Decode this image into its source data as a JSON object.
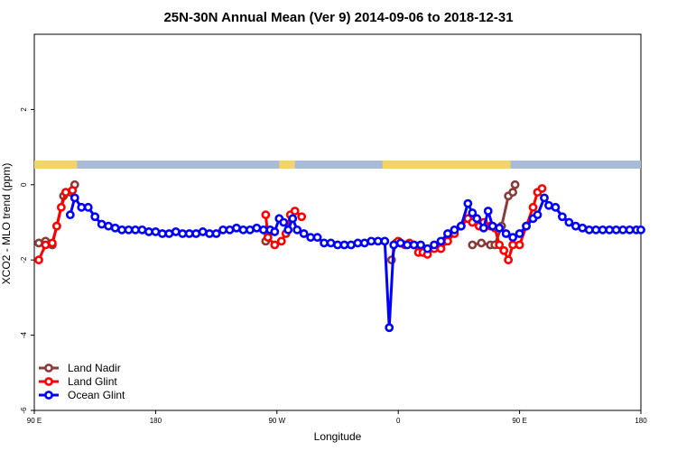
{
  "chart_data": {
    "type": "line",
    "title": "25N-30N Annual Mean (Ver 9)   2014-09-06 to 2018-12-31",
    "xlabel": "Longitude",
    "ylabel": "XCO2 - MLO trend (ppm)",
    "xlim": [
      -90,
      180
    ],
    "ylim": [
      -6,
      4
    ],
    "x_ticks": [
      {
        "value": -90,
        "label": "90 E"
      },
      {
        "value": -36,
        "label": "180"
      },
      {
        "value": 18,
        "label": "90 W"
      },
      {
        "value": 72,
        "label": "0"
      },
      {
        "value": 126,
        "label": "90 E"
      },
      {
        "value": 180,
        "label": "180"
      }
    ],
    "y_ticks": [
      -6,
      -4,
      -2,
      0,
      2
    ],
    "grid": false,
    "legend_position": "bottom-left",
    "land_color": "#f5d36b",
    "ocean_color": "#a8bcd8",
    "series": [
      {
        "name": "Land Nadir",
        "color": "#8b3a3a",
        "points": [
          [
            -88,
            -1.55
          ],
          [
            -85,
            -1.5
          ],
          [
            -82,
            -1.6
          ],
          [
            -80,
            -1.1
          ],
          [
            -77,
            -0.3
          ],
          [
            -74,
            -0.2
          ],
          [
            -72,
            0.0
          ],
          [
            13,
            -1.5
          ],
          [
            14,
            -1.3
          ],
          [
            69,
            -2.0
          ],
          [
            71,
            -1.55
          ],
          [
            73,
            -1.55
          ],
          [
            105,
            -1.6
          ],
          [
            109,
            -1.55
          ],
          [
            113,
            -1.6
          ],
          [
            115,
            -1.6
          ],
          [
            118,
            -1.1
          ],
          [
            121,
            -0.3
          ],
          [
            123,
            -0.2
          ],
          [
            124,
            0.0
          ]
        ]
      },
      {
        "name": "Land Glint",
        "color": "#ff0000",
        "points": [
          [
            -88,
            -2.0
          ],
          [
            -85,
            -1.6
          ],
          [
            -82,
            -1.55
          ],
          [
            -80,
            -1.1
          ],
          [
            -78,
            -0.6
          ],
          [
            -76,
            -0.2
          ],
          [
            -73,
            -0.15
          ],
          [
            13,
            -0.8
          ],
          [
            14,
            -1.4
          ],
          [
            17,
            -1.6
          ],
          [
            20,
            -1.5
          ],
          [
            22,
            -1.3
          ],
          [
            24,
            -0.8
          ],
          [
            26,
            -0.7
          ],
          [
            29,
            -0.85
          ],
          [
            72,
            -1.5
          ],
          [
            75,
            -1.6
          ],
          [
            77,
            -1.55
          ],
          [
            79,
            -1.6
          ],
          [
            81,
            -1.8
          ],
          [
            83,
            -1.8
          ],
          [
            85,
            -1.85
          ],
          [
            88,
            -1.7
          ],
          [
            91,
            -1.7
          ],
          [
            94,
            -1.5
          ],
          [
            97,
            -1.3
          ],
          [
            100,
            -1.1
          ],
          [
            103,
            -0.9
          ],
          [
            105,
            -1.0
          ],
          [
            108,
            -1.1
          ],
          [
            110,
            -1.0
          ],
          [
            113,
            -1.1
          ],
          [
            115,
            -1.15
          ],
          [
            117,
            -1.6
          ],
          [
            119,
            -1.75
          ],
          [
            121,
            -2.0
          ],
          [
            123,
            -1.6
          ],
          [
            126,
            -1.6
          ],
          [
            129,
            -1.1
          ],
          [
            132,
            -0.6
          ],
          [
            134,
            -0.2
          ],
          [
            136,
            -0.1
          ]
        ]
      },
      {
        "name": "Ocean Glint",
        "color": "#0000ff",
        "points": [
          [
            -74,
            -0.8
          ],
          [
            -72,
            -0.35
          ],
          [
            -69,
            -0.6
          ],
          [
            -66,
            -0.6
          ],
          [
            -63,
            -0.85
          ],
          [
            -60,
            -1.05
          ],
          [
            -57,
            -1.1
          ],
          [
            -54,
            -1.15
          ],
          [
            -51,
            -1.2
          ],
          [
            -48,
            -1.2
          ],
          [
            -45,
            -1.2
          ],
          [
            -42,
            -1.2
          ],
          [
            -39,
            -1.25
          ],
          [
            -36,
            -1.25
          ],
          [
            -33,
            -1.3
          ],
          [
            -30,
            -1.3
          ],
          [
            -27,
            -1.25
          ],
          [
            -24,
            -1.3
          ],
          [
            -21,
            -1.3
          ],
          [
            -18,
            -1.3
          ],
          [
            -15,
            -1.25
          ],
          [
            -12,
            -1.3
          ],
          [
            -9,
            -1.3
          ],
          [
            -6,
            -1.2
          ],
          [
            -3,
            -1.2
          ],
          [
            0,
            -1.15
          ],
          [
            3,
            -1.2
          ],
          [
            6,
            -1.2
          ],
          [
            9,
            -1.15
          ],
          [
            12,
            -1.2
          ],
          [
            15,
            -1.2
          ],
          [
            17,
            -1.25
          ],
          [
            19,
            -0.9
          ],
          [
            21,
            -1.0
          ],
          [
            23,
            -1.2
          ],
          [
            25,
            -0.9
          ],
          [
            27,
            -1.2
          ],
          [
            30,
            -1.3
          ],
          [
            33,
            -1.4
          ],
          [
            36,
            -1.4
          ],
          [
            39,
            -1.55
          ],
          [
            42,
            -1.55
          ],
          [
            45,
            -1.6
          ],
          [
            48,
            -1.6
          ],
          [
            51,
            -1.6
          ],
          [
            54,
            -1.55
          ],
          [
            57,
            -1.55
          ],
          [
            60,
            -1.5
          ],
          [
            63,
            -1.5
          ],
          [
            66,
            -1.5
          ],
          [
            68,
            -3.8
          ],
          [
            70,
            -1.6
          ],
          [
            73,
            -1.55
          ],
          [
            76,
            -1.6
          ],
          [
            79,
            -1.6
          ],
          [
            82,
            -1.6
          ],
          [
            85,
            -1.7
          ],
          [
            88,
            -1.6
          ],
          [
            91,
            -1.5
          ],
          [
            94,
            -1.3
          ],
          [
            97,
            -1.2
          ],
          [
            100,
            -1.1
          ],
          [
            103,
            -0.5
          ],
          [
            105,
            -0.75
          ],
          [
            107,
            -0.9
          ],
          [
            110,
            -1.15
          ],
          [
            112,
            -0.7
          ],
          [
            114,
            -1.1
          ],
          [
            117,
            -1.15
          ],
          [
            120,
            -1.3
          ],
          [
            123,
            -1.4
          ],
          [
            126,
            -1.3
          ],
          [
            129,
            -1.1
          ],
          [
            132,
            -0.9
          ],
          [
            134,
            -0.8
          ],
          [
            137,
            -0.35
          ],
          [
            139,
            -0.55
          ],
          [
            142,
            -0.6
          ],
          [
            145,
            -0.85
          ],
          [
            148,
            -1.0
          ],
          [
            151,
            -1.1
          ],
          [
            154,
            -1.15
          ],
          [
            157,
            -1.2
          ],
          [
            160,
            -1.2
          ],
          [
            163,
            -1.2
          ],
          [
            166,
            -1.2
          ],
          [
            169,
            -1.2
          ],
          [
            172,
            -1.2
          ],
          [
            175,
            -1.2
          ],
          [
            178,
            -1.2
          ],
          [
            180,
            -1.2
          ]
        ]
      }
    ]
  }
}
